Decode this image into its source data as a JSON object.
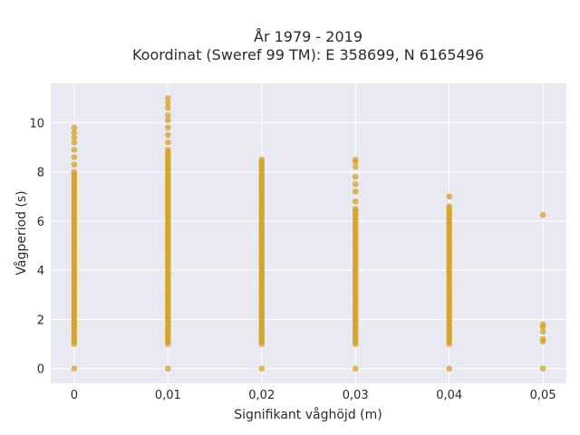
{
  "chart_data": {
    "type": "scatter",
    "title": [
      "År 1979 - 2019",
      "Koordinat (Sweref 99 TM): E 358699, N 6165496"
    ],
    "xlabel": "Signifikant våghöjd (m)",
    "ylabel": "Vågperiod (s)",
    "xlim": [
      -0.0025,
      0.0525
    ],
    "ylim": [
      -0.6,
      11.6
    ],
    "x_ticks": [
      0,
      0.01,
      0.02,
      0.03,
      0.04,
      0.05
    ],
    "x_tick_labels": [
      "0",
      "0,01",
      "0,02",
      "0,03",
      "0,04",
      "0,05"
    ],
    "y_ticks": [
      0,
      2,
      4,
      6,
      8,
      10
    ],
    "y_tick_labels": [
      "0",
      "2",
      "4",
      "6",
      "8",
      "10"
    ],
    "grid": true,
    "background": "#e9e9f1",
    "grid_color": "#ffffff",
    "marker_color": "#d4a020",
    "x_values": [
      0,
      0.01,
      0.02,
      0.03,
      0.04,
      0.05
    ],
    "point_groups": [
      {
        "x": 0,
        "dense_y_range": [
          1.0,
          8.0
        ],
        "extra_y": [
          0,
          8.3,
          8.6,
          8.9,
          9.2,
          9.4,
          9.6,
          9.8
        ]
      },
      {
        "x": 0.01,
        "dense_y_range": [
          1.0,
          8.9
        ],
        "extra_y": [
          0,
          9.2,
          9.5,
          9.8,
          10.1,
          10.3,
          10.6,
          10.8,
          11.0
        ]
      },
      {
        "x": 0.02,
        "dense_y_range": [
          1.0,
          8.5
        ],
        "extra_y": [
          0
        ]
      },
      {
        "x": 0.03,
        "dense_y_range": [
          1.0,
          6.5
        ],
        "extra_y": [
          0,
          6.8,
          7.2,
          7.5,
          7.8,
          8.2,
          8.4,
          8.5
        ]
      },
      {
        "x": 0.04,
        "dense_y_range": [
          1.0,
          6.6
        ],
        "extra_y": [
          0,
          7.0
        ]
      },
      {
        "x": 0.05,
        "dense_y_range": null,
        "extra_y": [
          0,
          1.1,
          1.2,
          1.5,
          1.7,
          1.8,
          6.25
        ]
      }
    ]
  }
}
